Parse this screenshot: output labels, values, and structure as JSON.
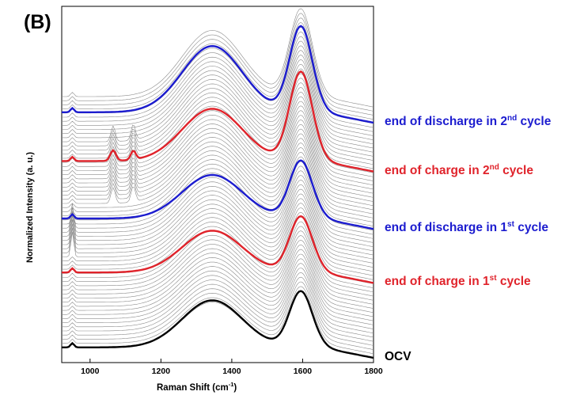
{
  "panel_label": "(B)",
  "colors": {
    "blue": "#1c1ccf",
    "red": "#e0232b",
    "black": "#000000",
    "gray": "#8a8a8a"
  },
  "chart_data": {
    "type": "line",
    "title": "",
    "xlabel": "Raman Shift (cm",
    "xlabel_sup": "-1",
    "xlabel_tail": ")",
    "ylabel": "Normalized Intensity (a. u.)",
    "xlim": [
      920,
      1800
    ],
    "xticks": [
      1000,
      1200,
      1400,
      1600,
      1800
    ],
    "n_background_spectra": 62,
    "peaks_cm-1": {
      "D_band": 1345,
      "G_band": 1595,
      "sharp_low": 950
    },
    "labeled_series": [
      {
        "name": "end of discharge in 2",
        "sup": "nd",
        "tail": " cycle",
        "color": "blue",
        "baseline_offset": 0.705,
        "D_height": 0.19,
        "G_height": 0.245
      },
      {
        "name": "end of charge in 2",
        "sup": "nd",
        "tail": " cycle",
        "color": "red",
        "baseline_offset": 0.565,
        "D_height": 0.15,
        "G_height": 0.255
      },
      {
        "name": "end of discharge in 1",
        "sup": "st",
        "tail": " cycle",
        "color": "blue",
        "baseline_offset": 0.4,
        "D_height": 0.125,
        "G_height": 0.165
      },
      {
        "name": "end of charge in 1",
        "sup": "st",
        "tail": " cycle",
        "color": "red",
        "baseline_offset": 0.245,
        "D_height": 0.12,
        "G_height": 0.16
      },
      {
        "name": "OCV",
        "sup": "",
        "tail": "",
        "color": "black",
        "baseline_offset": 0.03,
        "D_height": 0.135,
        "G_height": 0.16
      }
    ]
  }
}
